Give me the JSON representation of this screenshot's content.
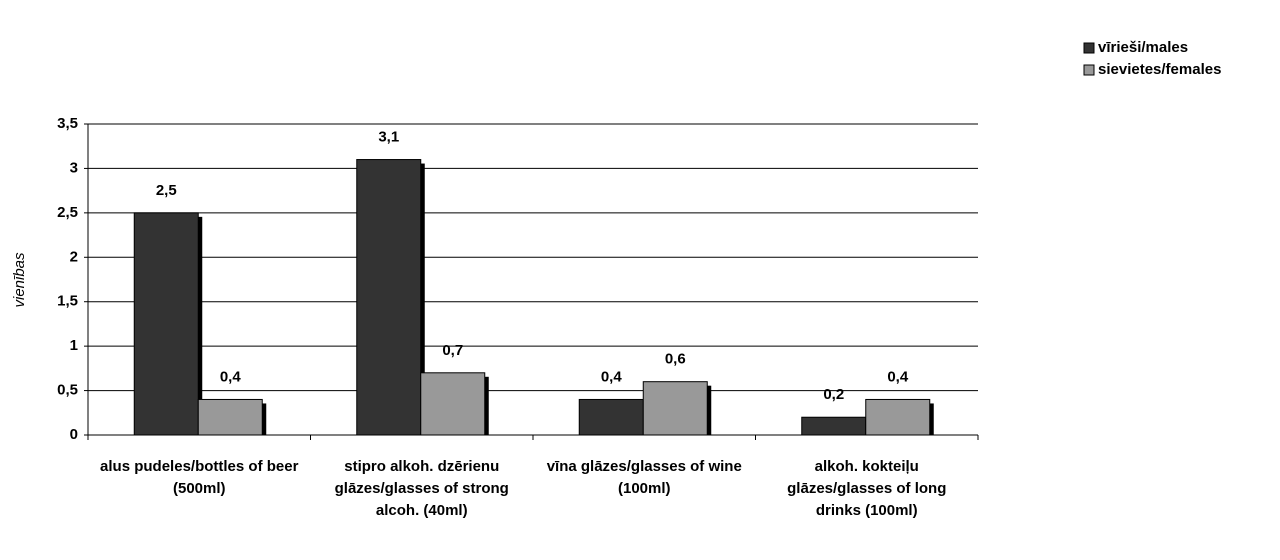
{
  "chart_data": {
    "type": "bar",
    "y_label": "vienības",
    "categories": [
      "alus pudeles/bottles of beer (500ml)",
      "stipro alkoh. dzērienu glāzes/glasses of strong alcoh. (40ml)",
      "vīna glāzes/glasses of wine (100ml)",
      "alkoh. kokteiļu glāzes/glasses of long drinks (100ml)"
    ],
    "series": [
      {
        "name": "vīrieši/males",
        "color": "#333333",
        "values": [
          2.5,
          3.1,
          0.4,
          0.2
        ],
        "value_labels": [
          "2,5",
          "3,1",
          "0,4",
          "0,2"
        ]
      },
      {
        "name": "sievietes/females",
        "color": "#999999",
        "values": [
          0.4,
          0.7,
          0.6,
          0.4
        ],
        "value_labels": [
          "0,4",
          "0,7",
          "0,6",
          "0,4"
        ]
      }
    ],
    "ylim": [
      0,
      3.5
    ],
    "yticks": [
      0,
      {
        "value": 0.5,
        "label": "0,5"
      },
      1,
      {
        "value": 1.5,
        "label": "1,5"
      },
      2,
      {
        "value": 2.5,
        "label": "2,5"
      },
      3,
      {
        "value": 3.5,
        "label": "3,5"
      }
    ],
    "grid": true,
    "legend": "top-right"
  }
}
